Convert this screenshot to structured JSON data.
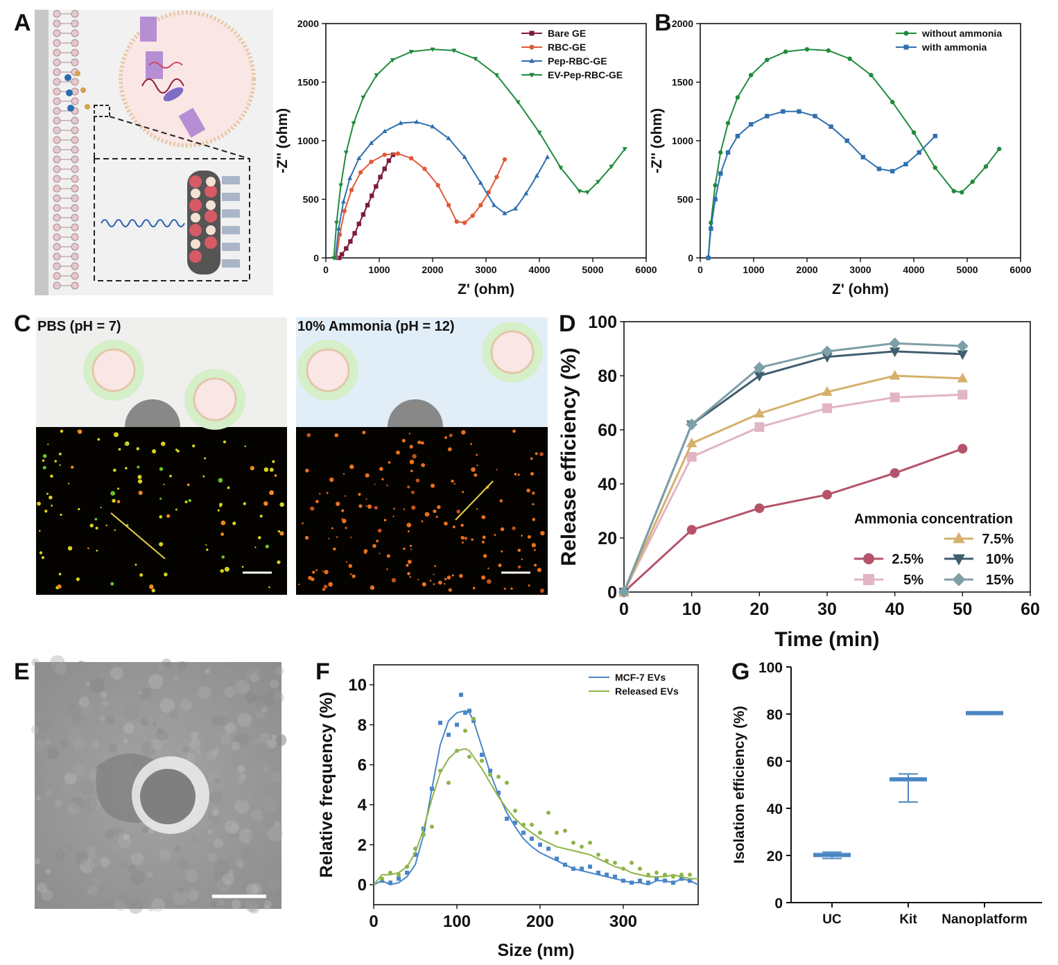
{
  "panels": {
    "A": "A",
    "B": "B",
    "C": "C",
    "D": "D",
    "E": "E",
    "F": "F",
    "G": "G"
  },
  "panelC": {
    "left_title": "PBS (pH = 7)",
    "right_title": "10% Ammonia (pH = 12)"
  },
  "chart_data": [
    {
      "id": "A",
      "type": "line",
      "xlabel": "Z' (ohm)",
      "ylabel": "-Z'' (ohm)",
      "xlim": [
        0,
        6000
      ],
      "ylim": [
        0,
        2000
      ],
      "xticks": [
        0,
        1000,
        2000,
        3000,
        4000,
        5000,
        6000
      ],
      "yticks": [
        0,
        500,
        1000,
        1500,
        2000
      ],
      "legend_position": "top-right",
      "series": [
        {
          "name": "Bare GE",
          "color": "#7b1b3a",
          "marker": "square",
          "x": [
            250,
            300,
            380,
            460,
            540,
            620,
            700,
            780,
            860,
            940,
            1020,
            1100,
            1180,
            1260
          ],
          "y": [
            0,
            30,
            80,
            140,
            210,
            290,
            370,
            450,
            530,
            610,
            690,
            760,
            830,
            880
          ]
        },
        {
          "name": "RBC-GE",
          "color": "#e05a3a",
          "marker": "circle",
          "x": [
            200,
            260,
            350,
            480,
            650,
            850,
            1100,
            1350,
            1600,
            1850,
            2100,
            2300,
            2450,
            2600,
            2750,
            2900,
            3050,
            3200,
            3350
          ],
          "y": [
            0,
            200,
            400,
            580,
            730,
            820,
            880,
            890,
            850,
            760,
            620,
            450,
            310,
            300,
            360,
            450,
            560,
            690,
            840
          ]
        },
        {
          "name": "Pep-RBC-GE",
          "color": "#2f6faf",
          "marker": "triangle-up",
          "x": [
            180,
            240,
            330,
            450,
            620,
            850,
            1100,
            1400,
            1700,
            2000,
            2300,
            2600,
            2900,
            3150,
            3350,
            3550,
            3750,
            3950,
            4150
          ],
          "y": [
            0,
            250,
            480,
            680,
            850,
            980,
            1080,
            1150,
            1160,
            1120,
            1020,
            860,
            640,
            450,
            380,
            420,
            550,
            700,
            860
          ]
        },
        {
          "name": "EV-Pep-RBC-GE",
          "color": "#1f8a3c",
          "marker": "triangle-down",
          "x": [
            150,
            200,
            280,
            380,
            520,
            700,
            950,
            1250,
            1600,
            2000,
            2400,
            2800,
            3200,
            3600,
            4000,
            4400,
            4750,
            4900,
            5100,
            5350,
            5600
          ],
          "y": [
            0,
            300,
            620,
            900,
            1150,
            1370,
            1560,
            1690,
            1760,
            1780,
            1770,
            1700,
            1560,
            1330,
            1070,
            770,
            570,
            560,
            650,
            780,
            930
          ]
        }
      ]
    },
    {
      "id": "B",
      "type": "line",
      "xlabel": "Z' (ohm)",
      "ylabel": "-Z'' (ohm)",
      "xlim": [
        0,
        6000
      ],
      "ylim": [
        0,
        2000
      ],
      "xticks": [
        0,
        1000,
        2000,
        3000,
        4000,
        5000,
        6000
      ],
      "yticks": [
        0,
        500,
        1000,
        1500,
        2000
      ],
      "legend_position": "top-right",
      "series": [
        {
          "name": "without ammonia",
          "color": "#1f8a3c",
          "marker": "circle",
          "x": [
            150,
            200,
            280,
            380,
            520,
            700,
            950,
            1250,
            1600,
            2000,
            2400,
            2800,
            3200,
            3600,
            4000,
            4400,
            4750,
            4900,
            5100,
            5350,
            5600
          ],
          "y": [
            0,
            300,
            620,
            900,
            1150,
            1370,
            1560,
            1690,
            1760,
            1780,
            1770,
            1700,
            1560,
            1330,
            1070,
            770,
            570,
            560,
            650,
            780,
            930
          ]
        },
        {
          "name": "with ammonia",
          "color": "#2f6faf",
          "marker": "square",
          "x": [
            150,
            200,
            280,
            380,
            520,
            700,
            950,
            1250,
            1550,
            1850,
            2150,
            2450,
            2750,
            3050,
            3350,
            3600,
            3850,
            4100,
            4400
          ],
          "y": [
            0,
            250,
            500,
            720,
            900,
            1040,
            1140,
            1210,
            1250,
            1250,
            1210,
            1120,
            1000,
            860,
            760,
            740,
            800,
            900,
            1040
          ]
        }
      ]
    },
    {
      "id": "D",
      "type": "line",
      "xlabel": "Time (min)",
      "ylabel": "Release efficiency (%)",
      "xlim": [
        0,
        60
      ],
      "ylim": [
        0,
        100
      ],
      "xticks": [
        0,
        10,
        20,
        30,
        40,
        50,
        60
      ],
      "yticks": [
        0,
        20,
        40,
        60,
        80,
        100
      ],
      "legend_title": "Ammonia concentration",
      "legend_position": "bottom-right",
      "series": [
        {
          "name": "2.5%",
          "color": "#b5536a",
          "marker": "circle",
          "x": [
            0,
            10,
            20,
            30,
            40,
            50
          ],
          "y": [
            0,
            23,
            31,
            36,
            44,
            53
          ]
        },
        {
          "name": "5%",
          "color": "#e2b5c3",
          "marker": "square",
          "x": [
            0,
            10,
            20,
            30,
            40,
            50
          ],
          "y": [
            0,
            50,
            61,
            68,
            72,
            73
          ]
        },
        {
          "name": "7.5%",
          "color": "#d4b06a",
          "marker": "triangle-up",
          "x": [
            0,
            10,
            20,
            30,
            40,
            50
          ],
          "y": [
            0,
            55,
            66,
            74,
            80,
            79
          ]
        },
        {
          "name": "10%",
          "color": "#3f5e6e",
          "marker": "triangle-down",
          "x": [
            0,
            10,
            20,
            30,
            40,
            50
          ],
          "y": [
            0,
            62,
            80,
            87,
            89,
            88
          ]
        },
        {
          "name": "15%",
          "color": "#7d9fa8",
          "marker": "diamond",
          "x": [
            0,
            10,
            20,
            30,
            40,
            50
          ],
          "y": [
            0,
            62,
            83,
            89,
            92,
            91
          ]
        }
      ]
    },
    {
      "id": "F",
      "type": "scatter",
      "xlabel": "Size (nm)",
      "ylabel": "Relative frequency (%)",
      "xlim": [
        0,
        390
      ],
      "ylim": [
        -1,
        11
      ],
      "xticks": [
        0,
        100,
        200,
        300
      ],
      "yticks": [
        0,
        2,
        4,
        6,
        8,
        10
      ],
      "legend_position": "top-right",
      "series": [
        {
          "name": "MCF-7 EVs",
          "color": "#4a86c5",
          "marker": "square",
          "points_x": [
            10,
            20,
            30,
            40,
            50,
            60,
            70,
            80,
            90,
            100,
            105,
            110,
            115,
            120,
            130,
            140,
            150,
            160,
            170,
            180,
            190,
            200,
            210,
            220,
            230,
            240,
            250,
            260,
            270,
            280,
            290,
            300,
            310,
            320,
            330,
            340,
            350,
            360,
            370,
            380
          ],
          "points_y": [
            0.2,
            0.1,
            0.3,
            0.6,
            1.5,
            2.8,
            4.8,
            8.1,
            7.5,
            8.0,
            9.5,
            8.6,
            8.7,
            8.2,
            6.5,
            5.7,
            4.6,
            3.3,
            3.1,
            2.6,
            2.3,
            2.0,
            1.8,
            1.3,
            1.0,
            0.8,
            0.8,
            0.9,
            0.6,
            0.5,
            0.4,
            0.2,
            0.1,
            0.2,
            0.1,
            0.3,
            0.2,
            0.1,
            0.3,
            0.2
          ],
          "fit_x": [
            0,
            10,
            20,
            30,
            40,
            50,
            60,
            70,
            80,
            90,
            100,
            110,
            115,
            120,
            130,
            140,
            150,
            160,
            170,
            180,
            190,
            200,
            210,
            220,
            230,
            240,
            250,
            260,
            270,
            280,
            290,
            300,
            310,
            320,
            330,
            340,
            350,
            360,
            370,
            380,
            390
          ],
          "fit_y": [
            0,
            0.2,
            0.0,
            0.1,
            0.4,
            1.0,
            2.5,
            4.8,
            7.0,
            8.2,
            8.6,
            8.7,
            8.6,
            8.2,
            6.9,
            5.6,
            4.5,
            3.6,
            2.9,
            2.3,
            1.9,
            1.6,
            1.4,
            1.2,
            1.0,
            0.8,
            0.7,
            0.6,
            0.5,
            0.4,
            0.3,
            0.2,
            0.1,
            0.1,
            0.0,
            0.2,
            0.2,
            0.1,
            0.3,
            0.2,
            0.0
          ]
        },
        {
          "name": "Released EVs",
          "color": "#8fb44a",
          "marker": "circle",
          "points_x": [
            10,
            20,
            30,
            40,
            50,
            60,
            70,
            80,
            90,
            100,
            110,
            115,
            120,
            130,
            140,
            150,
            160,
            170,
            180,
            190,
            200,
            210,
            220,
            230,
            240,
            250,
            260,
            270,
            280,
            290,
            300,
            310,
            320,
            330,
            340,
            350,
            360,
            370,
            380
          ],
          "points_y": [
            0.3,
            0.6,
            0.5,
            0.9,
            1.8,
            2.5,
            2.9,
            5.7,
            5.1,
            6.7,
            7.7,
            6.4,
            8.3,
            6.2,
            5.5,
            5.4,
            5.1,
            3.7,
            3.0,
            3.0,
            2.6,
            3.6,
            2.6,
            2.7,
            2.1,
            1.9,
            2.1,
            1.5,
            1.2,
            1.1,
            0.8,
            1.1,
            0.8,
            0.5,
            0.6,
            0.5,
            0.4,
            0.5,
            0.5
          ],
          "fit_x": [
            0,
            10,
            20,
            30,
            40,
            50,
            60,
            70,
            80,
            90,
            100,
            110,
            115,
            120,
            130,
            140,
            150,
            160,
            170,
            180,
            190,
            200,
            210,
            220,
            230,
            240,
            250,
            260,
            270,
            280,
            290,
            300,
            310,
            320,
            330,
            340,
            350,
            360,
            370,
            380,
            390
          ],
          "fit_y": [
            0,
            0.5,
            0.5,
            0.6,
            0.9,
            1.6,
            2.8,
            4.3,
            5.6,
            6.3,
            6.7,
            6.8,
            6.7,
            6.4,
            5.8,
            5.1,
            4.4,
            3.8,
            3.3,
            2.9,
            2.6,
            2.3,
            2.1,
            1.9,
            1.8,
            1.7,
            1.6,
            1.5,
            1.3,
            1.1,
            0.9,
            0.8,
            0.6,
            0.5,
            0.4,
            0.4,
            0.4,
            0.5,
            0.4,
            0.3,
            0.3
          ]
        }
      ]
    },
    {
      "id": "G",
      "type": "box",
      "xlabel": "",
      "ylabel": "Isolation efficiency (%)",
      "ylim": [
        0,
        100
      ],
      "yticks": [
        0,
        20,
        40,
        60,
        80,
        100
      ],
      "categories": [
        "UC",
        "Kit",
        "Nanoplatform"
      ],
      "color": "#4a86c5",
      "series": [
        {
          "mean": [
            20.2,
            52.3,
            80.4
          ],
          "min": [
            18.7,
            42.7,
            79.8
          ],
          "max": [
            21.4,
            54.6,
            80.9
          ]
        }
      ]
    }
  ]
}
